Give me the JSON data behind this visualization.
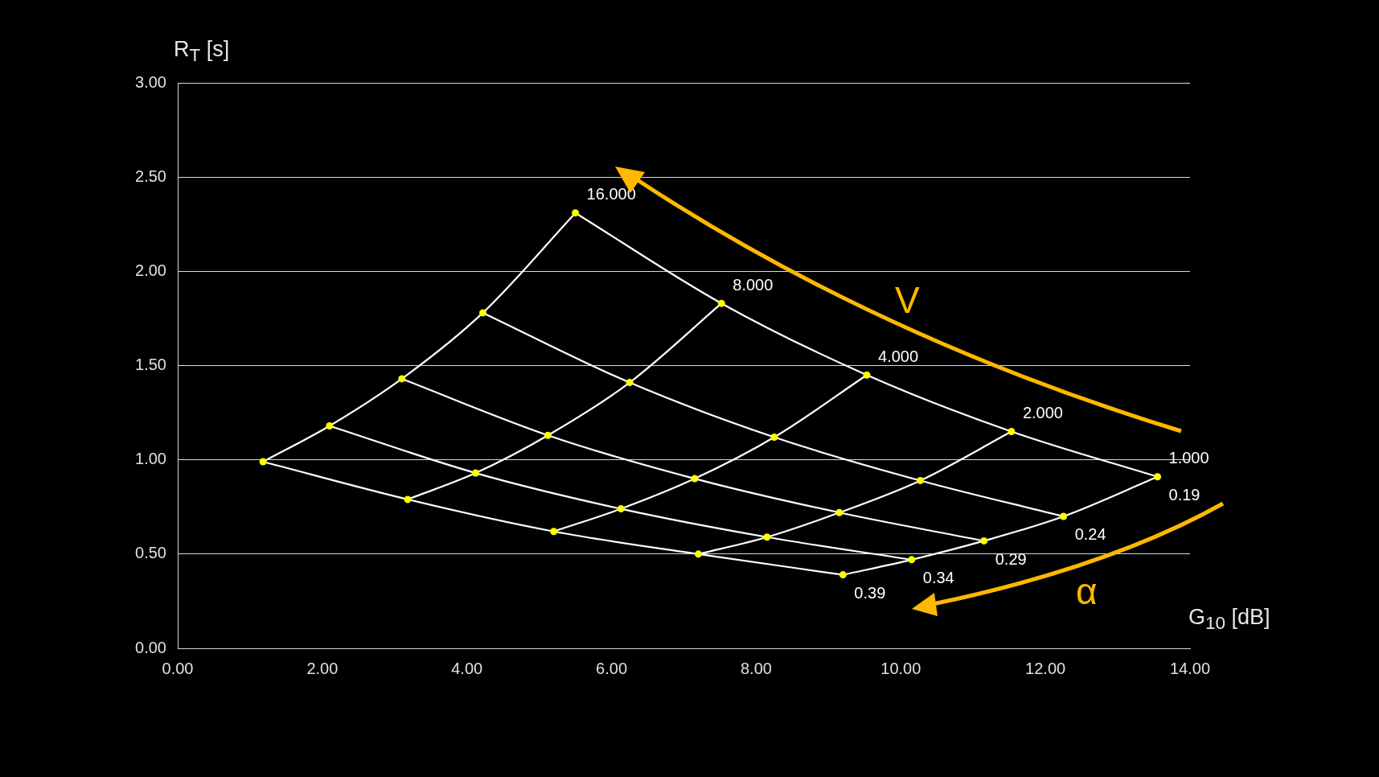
{
  "chart_data": {
    "type": "line",
    "xlabel": "G$_{10}$ [dB]",
    "ylabel": "R$_{T}$ [s]",
    "xlim": [
      0,
      14
    ],
    "ylim": [
      0,
      3
    ],
    "xticks": [
      {
        "value": 0,
        "label": "0.00"
      },
      {
        "value": 2,
        "label": "2.00"
      },
      {
        "value": 4,
        "label": "4.00"
      },
      {
        "value": 6,
        "label": "6.00"
      },
      {
        "value": 8,
        "label": "8.00"
      },
      {
        "value": 10,
        "label": "10.00"
      },
      {
        "value": 12,
        "label": "12.00"
      },
      {
        "value": 14,
        "label": "14.00"
      }
    ],
    "yticks": [
      {
        "value": 0,
        "label": "0.00"
      },
      {
        "value": 0.5,
        "label": "0.50"
      },
      {
        "value": 1,
        "label": "1.00"
      },
      {
        "value": 1.5,
        "label": "1.50"
      },
      {
        "value": 2,
        "label": "2.00"
      },
      {
        "value": 2.5,
        "label": "2.50"
      },
      {
        "value": 3,
        "label": "3.00"
      }
    ],
    "grid": "y",
    "legend": false,
    "marker": "none",
    "line_style": "solid",
    "series": [
      {
        "color": "#ffffff",
        "x": [
          5.5,
          7.52,
          9.53,
          11.53,
          13.55
        ],
        "values": [
          2.31,
          1.83,
          1.45,
          1.15,
          0.91
        ]
      },
      {
        "color": "#ffffff",
        "x": [
          4.22,
          6.25,
          8.25,
          10.27,
          12.25
        ],
        "values": [
          1.78,
          1.41,
          1.12,
          0.89,
          0.7
        ]
      },
      {
        "color": "#ffffff",
        "x": [
          3.1,
          5.12,
          7.15,
          9.15,
          11.15
        ],
        "values": [
          1.43,
          1.13,
          0.9,
          0.72,
          0.57
        ]
      },
      {
        "color": "#ffffff",
        "x": [
          2.1,
          4.12,
          6.13,
          8.15,
          10.15
        ],
        "values": [
          1.18,
          0.93,
          0.74,
          0.59,
          0.47
        ]
      },
      {
        "color": "#ffffff",
        "x": [
          1.18,
          3.18,
          5.2,
          7.2,
          9.2
        ],
        "values": [
          0.99,
          0.79,
          0.62,
          0.5,
          0.39
        ]
      },
      {
        "color": "#ffffff",
        "x": [
          1.18,
          2.1,
          3.1,
          4.22,
          5.5
        ],
        "values": [
          0.99,
          1.18,
          1.43,
          1.78,
          2.31
        ]
      },
      {
        "color": "#ffffff",
        "x": [
          3.18,
          4.12,
          5.12,
          6.25,
          7.52
        ],
        "values": [
          0.79,
          0.93,
          1.13,
          1.41,
          1.83
        ]
      },
      {
        "color": "#ffffff",
        "x": [
          5.2,
          6.13,
          7.15,
          8.25,
          9.53
        ],
        "values": [
          0.62,
          0.74,
          0.9,
          1.12,
          1.45
        ]
      },
      {
        "color": "#ffffff",
        "x": [
          7.2,
          8.15,
          9.15,
          10.27,
          11.53
        ],
        "values": [
          0.5,
          0.59,
          0.72,
          0.89,
          1.15
        ]
      },
      {
        "color": "#ffffff",
        "x": [
          9.2,
          10.15,
          11.15,
          12.25,
          13.55
        ],
        "values": [
          0.39,
          0.47,
          0.57,
          0.7,
          0.91
        ]
      },
      {
        "type": "scatter",
        "marker": "circle",
        "color": "#ffff00",
        "x": [
          5.5,
          7.52,
          9.53,
          11.53,
          13.55,
          4.22,
          6.25,
          8.25,
          10.27,
          12.25,
          3.1,
          5.12,
          7.15,
          9.15,
          11.15,
          2.1,
          4.12,
          6.13,
          8.15,
          10.15,
          1.18,
          3.18,
          5.2,
          7.2,
          9.2
        ],
        "values": [
          2.31,
          1.83,
          1.45,
          1.15,
          0.91,
          1.78,
          1.41,
          1.12,
          0.89,
          0.7,
          1.43,
          1.13,
          0.9,
          0.72,
          0.57,
          1.18,
          0.93,
          0.74,
          0.59,
          0.47,
          0.99,
          0.79,
          0.62,
          0.5,
          0.39
        ]
      }
    ],
    "annotations": [
      {
        "text": "16.000",
        "x": 5.5,
        "y": 2.31
      },
      {
        "text": "8.000",
        "x": 7.52,
        "y": 1.83
      },
      {
        "text": "4.000",
        "x": 9.53,
        "y": 1.45
      },
      {
        "text": "2.000",
        "x": 11.53,
        "y": 1.15
      },
      {
        "text": "1.000",
        "x": 13.55,
        "y": 0.91
      },
      {
        "text": "0.19",
        "x": 13.55,
        "y": 0.91
      },
      {
        "text": "0.24",
        "x": 12.25,
        "y": 0.7
      },
      {
        "text": "0.29",
        "x": 11.15,
        "y": 0.57
      },
      {
        "text": "0.34",
        "x": 10.15,
        "y": 0.47
      },
      {
        "text": "0.39",
        "x": 9.2,
        "y": 0.39
      },
      "V",
      "α"
    ]
  }
}
